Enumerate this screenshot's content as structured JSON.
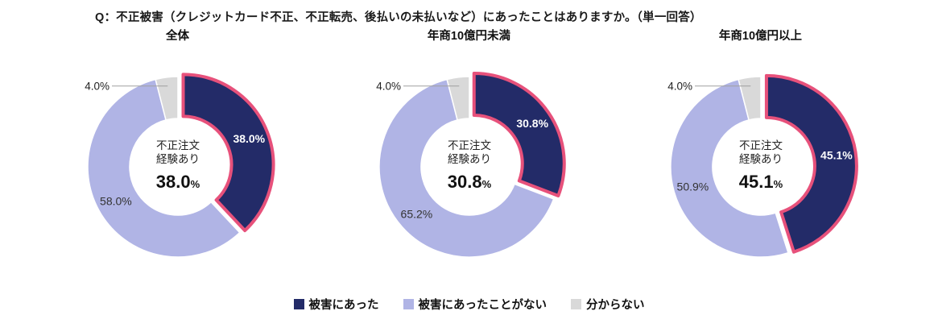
{
  "page_title": "Q：不正被害（クレジットカード不正、不正転売、後払いの未払いなど）にあったことはありますか。（単一回答）",
  "colors": {
    "hit": "#232b68",
    "no_hit": "#b0b4e5",
    "unknown": "#d9d9d9",
    "highlight": "#e7517b",
    "leader_line": "#a0a0a0",
    "label_dark": "#222222",
    "label_light": "#ffffff"
  },
  "legend": {
    "items": [
      {
        "label": "被害にあった",
        "color": "#232b68"
      },
      {
        "label": "被害にあったことがない",
        "color": "#b0b4e5"
      },
      {
        "label": "分からない",
        "color": "#d9d9d9"
      }
    ]
  },
  "chart_data": [
    {
      "type": "pie",
      "donut": true,
      "title": "全体",
      "center_lines": [
        "不正注文",
        "経験あり"
      ],
      "center_value": "38.0",
      "center_unit": "%",
      "slices": [
        {
          "label": "被害にあった",
          "value": 38.0,
          "display": "38.0%",
          "color": "#232b68",
          "text_color": "#ffffff",
          "label_bold": true,
          "highlighted": true,
          "label_pos": "inside"
        },
        {
          "label": "被害にあったことがない",
          "value": 58.0,
          "display": "58.0%",
          "color": "#b0b4e5",
          "text_color": "#333333",
          "label_pos": "inside"
        },
        {
          "label": "分からない",
          "value": 4.0,
          "display": "4.0%",
          "color": "#d9d9d9",
          "text_color": "#222222",
          "label_pos": "outside"
        }
      ]
    },
    {
      "type": "pie",
      "donut": true,
      "title": "年商10億円未満",
      "center_lines": [
        "不正注文",
        "経験あり"
      ],
      "center_value": "30.8",
      "center_unit": "%",
      "slices": [
        {
          "label": "被害にあった",
          "value": 30.8,
          "display": "30.8%",
          "color": "#232b68",
          "text_color": "#ffffff",
          "label_bold": true,
          "highlighted": true,
          "label_pos": "inside"
        },
        {
          "label": "被害にあったことがない",
          "value": 65.2,
          "display": "65.2%",
          "color": "#b0b4e5",
          "text_color": "#333333",
          "label_pos": "inside"
        },
        {
          "label": "分からない",
          "value": 4.0,
          "display": "4.0%",
          "color": "#d9d9d9",
          "text_color": "#222222",
          "label_pos": "outside"
        }
      ]
    },
    {
      "type": "pie",
      "donut": true,
      "title": "年商10億円以上",
      "center_lines": [
        "不正注文",
        "経験あり"
      ],
      "center_value": "45.1",
      "center_unit": "%",
      "slices": [
        {
          "label": "被害にあった",
          "value": 45.1,
          "display": "45.1%",
          "color": "#232b68",
          "text_color": "#ffffff",
          "label_bold": true,
          "highlighted": true,
          "label_pos": "inside"
        },
        {
          "label": "被害にあったことがない",
          "value": 50.9,
          "display": "50.9%",
          "color": "#b0b4e5",
          "text_color": "#333333",
          "label_pos": "inside"
        },
        {
          "label": "分からない",
          "value": 4.0,
          "display": "4.0%",
          "color": "#d9d9d9",
          "text_color": "#222222",
          "label_pos": "outside"
        }
      ]
    }
  ]
}
